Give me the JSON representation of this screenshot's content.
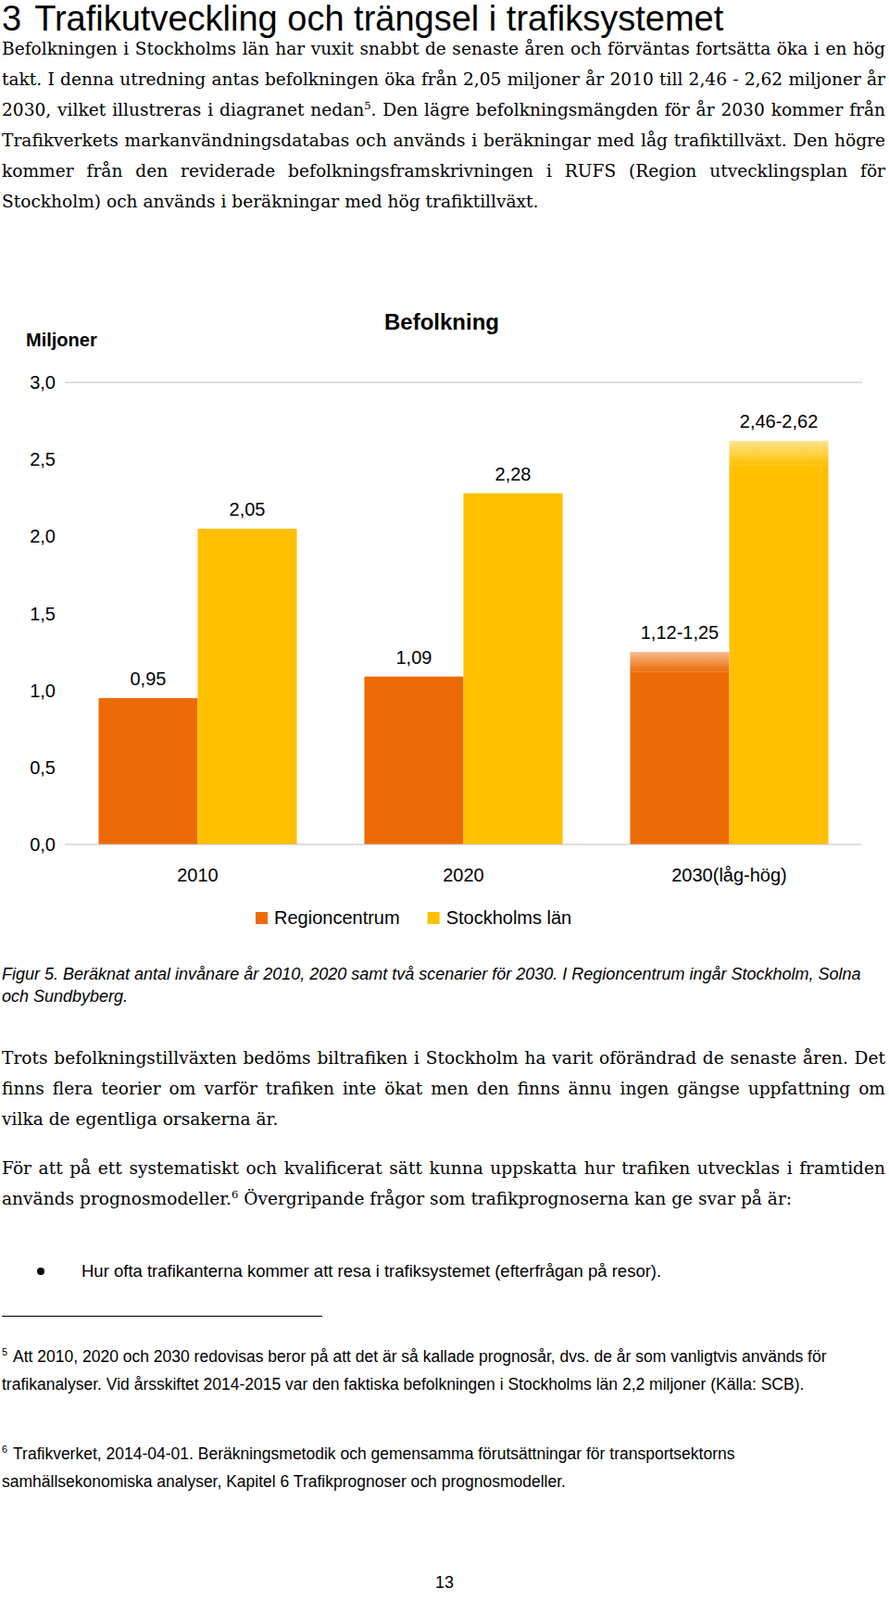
{
  "document": {
    "heading": {
      "number": "3",
      "title": "Trafikutveckling och trängsel i trafiksystemet"
    },
    "paragraphs": [
      [
        {
          "text": "Befolkningen i Stockholms län har vuxit snabbt de senaste åren och förväntas fortsätta öka i en hög takt. I denna utredning antas befolkningen öka från 2,05 miljoner år 2010 till 2,46 - 2,62 miljoner år 2030, vilket illustreras i diagranet nedan"
        },
        {
          "sup": "5"
        },
        {
          "text": ". Den lägre befolkningsmängden för år 2030 kommer från Trafikverkets markanvändningsdatabas och används i beräkningar med låg trafiktillväxt. Den högre kommer från den reviderade befolkningsframskrivningen i RUFS (Region utvecklingsplan för Stockholm) och används i beräkningar med hög trafiktillväxt."
        }
      ],
      [
        {
          "text": "Trots befolkningstillväxten bedöms biltrafiken i Stockholm ha varit oförändrad de senaste åren. Det finns flera teorier om varför trafiken inte ökat men den finns ännu ingen gängse uppfattning om vilka de egentliga orsakerna är."
        }
      ],
      [
        {
          "text": "För att på ett systematiskt och kvalificerat sätt kunna uppskatta hur trafiken utvecklas i framtiden används prognosmodeller."
        },
        {
          "sup": "6"
        },
        {
          "text": " Övergripande frågor som trafikprognoserna kan ge svar på är:"
        }
      ]
    ],
    "caption": "Figur 5. Beräknat antal invånare år 2010, 2020 samt två scenarier för 2030. I Regioncentrum ingår Stockholm, Solna och Sundbyberg.",
    "bullets": [
      "Hur ofta trafikanterna kommer att resa i trafiksystemet (efterfrågan på resor)."
    ],
    "footnotes": [
      {
        "number": "5",
        "text": "Att 2010, 2020 och 2030 redovisas beror på att det är så kallade prognosår, dvs. de år som vanligtvis används för trafikanalyser. Vid årsskiftet 2014-2015 var den faktiska befolkningen i Stockholms län 2,2 miljoner (Källa: SCB)."
      },
      {
        "number": "6",
        "text": "Trafikverket, 2014-04-01. Beräkningsmetodik och gemensamma förutsättningar för transportsektorns samhällsekonomiska analyser, Kapitel 6 Trafikprognoser och prognosmodeller."
      }
    ],
    "page_number": "13"
  },
  "chart_data": {
    "type": "bar",
    "title": "Befolkning",
    "y_label": "Miljoner",
    "categories": [
      "2010",
      "2020",
      "2030(låg-hög)"
    ],
    "series": [
      {
        "name": "Regioncentrum",
        "color": "#ed6b06",
        "values": [
          0.95,
          1.09,
          1.12
        ],
        "high": [
          null,
          null,
          1.25
        ],
        "value_labels": [
          "0,95",
          "1,09",
          "1,12-1,25"
        ]
      },
      {
        "name": "Stockholms län",
        "color": "#ffc000",
        "values": [
          2.05,
          2.28,
          2.46
        ],
        "high": [
          null,
          null,
          2.62
        ],
        "value_labels": [
          "2,05",
          "2,28",
          "2,46-2,62"
        ]
      }
    ],
    "ylim": [
      0,
      3
    ],
    "yticks": [
      {
        "value": 0,
        "label": "0,0"
      },
      {
        "value": 0.5,
        "label": "0,5"
      },
      {
        "value": 1,
        "label": "1,0"
      },
      {
        "value": 1.5,
        "label": "1,5"
      },
      {
        "value": 2,
        "label": "2,0"
      },
      {
        "value": 2.5,
        "label": "2,5"
      },
      {
        "value": 3,
        "label": "3,0"
      }
    ],
    "grid": false,
    "legend": "bottom",
    "data_labels": true
  }
}
